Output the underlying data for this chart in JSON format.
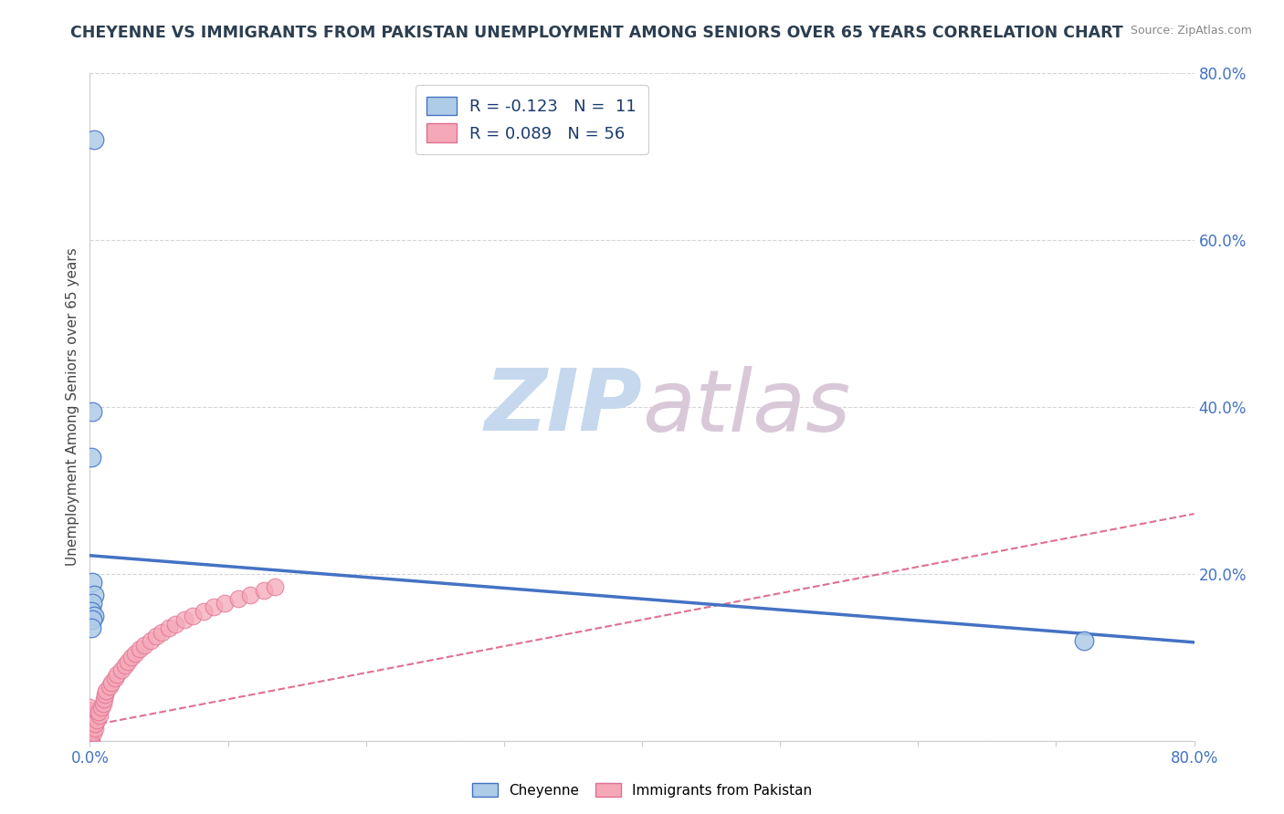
{
  "title": "CHEYENNE VS IMMIGRANTS FROM PAKISTAN UNEMPLOYMENT AMONG SENIORS OVER 65 YEARS CORRELATION CHART",
  "source": "Source: ZipAtlas.com",
  "ylabel": "Unemployment Among Seniors over 65 years",
  "xlabel": "",
  "xlim": [
    0.0,
    0.8
  ],
  "ylim": [
    0.0,
    0.8
  ],
  "cheyenne_R": -0.123,
  "cheyenne_N": 11,
  "pakistan_R": 0.089,
  "pakistan_N": 56,
  "cheyenne_color": "#aecce8",
  "pakistan_color": "#f5a8b8",
  "cheyenne_line_color": "#4472c4",
  "pakistan_line_color": "#e07090",
  "cheyenne_line_start_y": 0.222,
  "cheyenne_line_end_y": 0.118,
  "pakistan_line_start_y": 0.018,
  "pakistan_line_end_y": 0.272,
  "watermark_zip": "ZIP",
  "watermark_atlas": "atlas",
  "watermark_color_zip": "#c5d8ed",
  "watermark_color_atlas": "#d8c8d8",
  "legend_label_cheyenne": "Cheyenne",
  "legend_label_pakistan": "Immigrants from Pakistan",
  "cheyenne_points_x": [
    0.003,
    0.002,
    0.001,
    0.002,
    0.003,
    0.002,
    0.001,
    0.003,
    0.002,
    0.001,
    0.72
  ],
  "cheyenne_points_y": [
    0.72,
    0.395,
    0.34,
    0.19,
    0.175,
    0.165,
    0.155,
    0.15,
    0.145,
    0.135,
    0.12
  ],
  "pakistan_points_x": [
    0.0,
    0.0,
    0.0,
    0.0,
    0.0,
    0.0,
    0.0,
    0.0,
    0.0,
    0.0,
    0.0,
    0.0,
    0.0,
    0.0,
    0.0,
    0.0,
    0.0,
    0.0,
    0.0,
    0.0,
    0.002,
    0.003,
    0.004,
    0.005,
    0.006,
    0.007,
    0.008,
    0.009,
    0.01,
    0.011,
    0.012,
    0.014,
    0.016,
    0.018,
    0.02,
    0.022,
    0.025,
    0.028,
    0.03,
    0.033,
    0.036,
    0.04,
    0.044,
    0.048,
    0.052,
    0.057,
    0.062,
    0.068,
    0.075,
    0.082,
    0.09,
    0.098,
    0.107,
    0.116,
    0.126,
    0.135
  ],
  "pakistan_points_y": [
    0.0,
    0.0,
    0.0,
    0.0,
    0.0,
    0.0,
    0.005,
    0.008,
    0.01,
    0.012,
    0.015,
    0.018,
    0.02,
    0.022,
    0.025,
    0.028,
    0.03,
    0.033,
    0.036,
    0.04,
    0.01,
    0.015,
    0.02,
    0.025,
    0.03,
    0.035,
    0.04,
    0.045,
    0.05,
    0.055,
    0.06,
    0.065,
    0.07,
    0.075,
    0.08,
    0.085,
    0.09,
    0.095,
    0.1,
    0.105,
    0.11,
    0.115,
    0.12,
    0.125,
    0.13,
    0.135,
    0.14,
    0.145,
    0.15,
    0.155,
    0.16,
    0.165,
    0.17,
    0.175,
    0.18,
    0.185
  ],
  "background_color": "#ffffff",
  "grid_color": "#cccccc"
}
